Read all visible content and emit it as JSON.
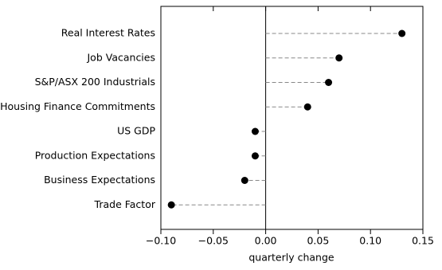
{
  "chart_data": {
    "type": "dot",
    "x_label": "quarterly change",
    "categories": [
      "Real Interest Rates",
      "Job Vacancies",
      "S&P/ASX 200 Industrials",
      "Housing Finance Commitments",
      "US GDP",
      "Production Expectations",
      "Business Expectations",
      "Trade Factor"
    ],
    "values": [
      0.13,
      0.07,
      0.06,
      0.04,
      -0.01,
      -0.01,
      -0.02,
      -0.09
    ],
    "color": "#000000",
    "xlim": [
      -0.1,
      0.15
    ],
    "xticks": [
      {
        "value": -0.1,
        "label": "−0.10"
      },
      {
        "value": -0.05,
        "label": "−0.05"
      },
      {
        "value": 0,
        "label": "0.00"
      },
      {
        "value": 0.05,
        "label": "0.05"
      },
      {
        "value": 0.1,
        "label": "0.10"
      },
      {
        "value": 0.15,
        "label": "0.15"
      }
    ]
  }
}
